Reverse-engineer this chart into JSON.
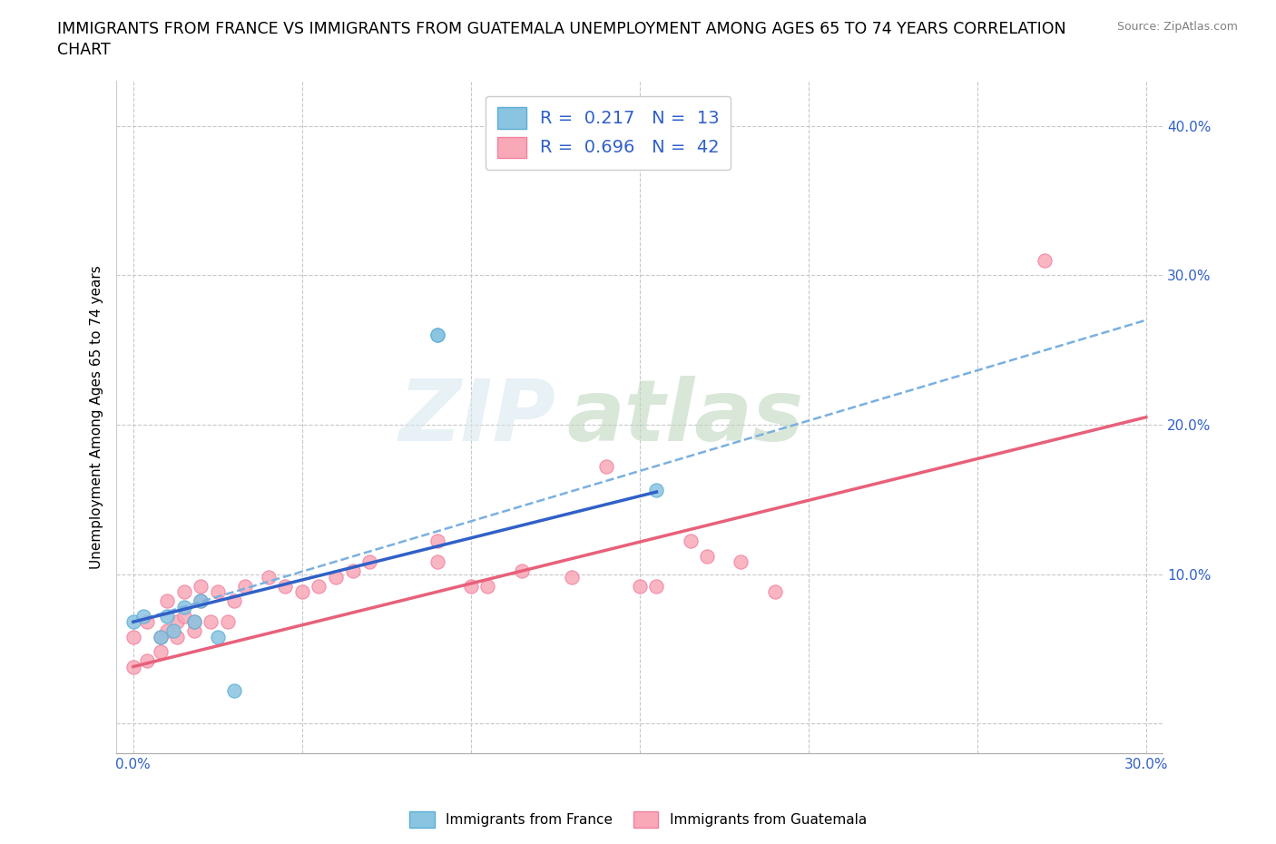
{
  "title_line1": "IMMIGRANTS FROM FRANCE VS IMMIGRANTS FROM GUATEMALA UNEMPLOYMENT AMONG AGES 65 TO 74 YEARS CORRELATION",
  "title_line2": "CHART",
  "source_text": "Source: ZipAtlas.com",
  "xlabel": "",
  "ylabel": "Unemployment Among Ages 65 to 74 years",
  "xlim": [
    -0.005,
    0.305
  ],
  "ylim": [
    -0.02,
    0.43
  ],
  "xticks": [
    0.0,
    0.05,
    0.1,
    0.15,
    0.2,
    0.25,
    0.3
  ],
  "yticks": [
    0.0,
    0.1,
    0.2,
    0.3,
    0.4
  ],
  "xticklabels": [
    "0.0%",
    "",
    "",
    "",
    "",
    "",
    "30.0%"
  ],
  "yticklabels": [
    "",
    "10.0%",
    "20.0%",
    "30.0%",
    "40.0%"
  ],
  "france_color": "#89c4e1",
  "france_edge_color": "#5aadd4",
  "guatemala_color": "#f9a8b8",
  "guatemala_edge_color": "#f080a0",
  "france_line_color_solid": "#3060c8",
  "france_line_color_dashed": "#7ab0e0",
  "guatemala_line_color": "#e8607a",
  "france_R": "0.217",
  "france_N": "13",
  "guatemala_R": "0.696",
  "guatemala_N": "42",
  "watermark_ZIP": "ZIP",
  "watermark_atlas": "atlas",
  "france_scatter_x": [
    0.0,
    0.003,
    0.008,
    0.01,
    0.012,
    0.015,
    0.018,
    0.02,
    0.025,
    0.03,
    0.09,
    0.09,
    0.155
  ],
  "france_scatter_y": [
    0.068,
    0.072,
    0.058,
    0.072,
    0.062,
    0.078,
    0.068,
    0.082,
    0.058,
    0.022,
    0.26,
    0.26,
    0.156
  ],
  "guatemala_scatter_x": [
    0.0,
    0.0,
    0.004,
    0.004,
    0.008,
    0.008,
    0.01,
    0.01,
    0.013,
    0.013,
    0.015,
    0.015,
    0.018,
    0.018,
    0.02,
    0.02,
    0.023,
    0.025,
    0.028,
    0.03,
    0.033,
    0.04,
    0.045,
    0.05,
    0.055,
    0.06,
    0.065,
    0.07,
    0.09,
    0.09,
    0.1,
    0.105,
    0.115,
    0.13,
    0.14,
    0.15,
    0.155,
    0.165,
    0.17,
    0.18,
    0.19,
    0.27
  ],
  "guatemala_scatter_y": [
    0.038,
    0.058,
    0.042,
    0.068,
    0.048,
    0.058,
    0.062,
    0.082,
    0.058,
    0.068,
    0.072,
    0.088,
    0.062,
    0.068,
    0.082,
    0.092,
    0.068,
    0.088,
    0.068,
    0.082,
    0.092,
    0.098,
    0.092,
    0.088,
    0.092,
    0.098,
    0.102,
    0.108,
    0.108,
    0.122,
    0.092,
    0.092,
    0.102,
    0.098,
    0.172,
    0.092,
    0.092,
    0.122,
    0.112,
    0.108,
    0.088,
    0.31
  ],
  "france_solid_trend_x": [
    0.0,
    0.155
  ],
  "france_solid_trend_y": [
    0.068,
    0.155
  ],
  "france_dashed_trend_x": [
    0.0,
    0.3
  ],
  "france_dashed_trend_y": [
    0.068,
    0.27
  ],
  "guatemala_trend_x": [
    0.0,
    0.3
  ],
  "guatemala_trend_y": [
    0.038,
    0.205
  ],
  "grid_color": "#c8c8c8",
  "background_color": "#ffffff",
  "title_fontsize": 12.5,
  "axis_label_fontsize": 11,
  "tick_fontsize": 11,
  "legend_fontsize": 13,
  "marker_size": 120
}
